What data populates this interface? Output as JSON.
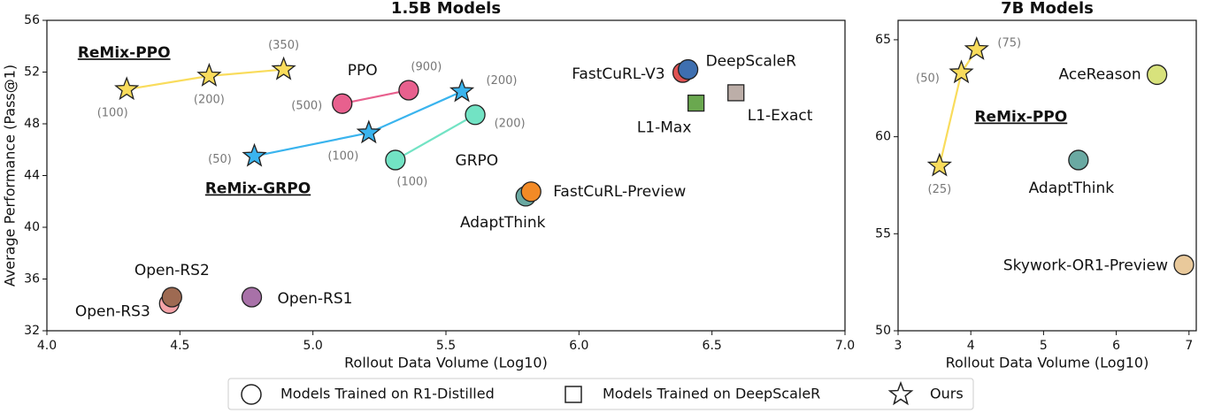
{
  "chart_data": [
    {
      "type": "scatter",
      "title": "1.5B Models",
      "x_label": "Rollout Data Volume (Log10)",
      "y_label": "Average Performance (Pass@1)",
      "xlim": [
        4.0,
        7.0
      ],
      "ylim": [
        32,
        56
      ],
      "xticks": [
        {
          "value": 4,
          "label": "4.0"
        },
        4.5,
        {
          "value": 5,
          "label": "5.0"
        },
        5.5,
        {
          "value": 6,
          "label": "6.0"
        },
        6.5,
        {
          "value": 7,
          "label": "7.0"
        }
      ],
      "yticks": [
        32,
        36,
        40,
        44,
        48,
        52,
        56
      ],
      "series": [
        {
          "name": "ReMix-PPO",
          "marker": "star",
          "color": "#f9dc5c",
          "x": [
            4.3,
            4.61,
            4.89
          ],
          "values": [
            50.66,
            51.7,
            52.2
          ],
          "point_labels": [
            "(100)",
            "(200)",
            "(350)"
          ]
        },
        {
          "name": "PPO",
          "marker": "circle",
          "color": "#e8608e",
          "x": [
            5.11,
            5.36
          ],
          "values": [
            49.56,
            50.6
          ],
          "point_labels": [
            "(500)",
            "(900)"
          ]
        },
        {
          "name": "ReMix-GRPO",
          "marker": "star",
          "color": "#3ab4ee",
          "x": [
            4.78,
            5.21,
            5.56
          ],
          "values": [
            45.5,
            47.3,
            50.5
          ],
          "point_labels": [
            "(50)",
            "(100)",
            "(200)"
          ]
        },
        {
          "name": "GRPO",
          "marker": "circle",
          "color": "#72e3c4",
          "x": [
            5.31,
            5.61
          ],
          "values": [
            45.2,
            48.7
          ],
          "point_labels": [
            "(100)",
            "(200)"
          ]
        },
        {
          "name": "FastCuRL-V3",
          "marker": "circle",
          "color": "#e05252",
          "x": [
            6.39
          ],
          "values": [
            51.96
          ]
        },
        {
          "name": "DeepScaleR",
          "marker": "circle",
          "color": "#3e6fb0",
          "x": [
            6.41
          ],
          "values": [
            52.2
          ]
        },
        {
          "name": "L1-Max",
          "marker": "square",
          "color": "#6aa84f",
          "x": [
            6.44
          ],
          "values": [
            49.6
          ]
        },
        {
          "name": "L1-Exact",
          "marker": "square",
          "color": "#bcaea8",
          "x": [
            6.59
          ],
          "values": [
            50.4
          ]
        },
        {
          "name": "AdaptThink",
          "marker": "circle",
          "color": "#6aa9a2",
          "x": [
            5.8
          ],
          "values": [
            42.4
          ]
        },
        {
          "name": "FastCuRL-Preview",
          "marker": "circle",
          "color": "#f28a26",
          "x": [
            5.82
          ],
          "values": [
            42.75
          ]
        },
        {
          "name": "Open-RS3",
          "marker": "circle",
          "color": "#f5a3a8",
          "x": [
            4.46
          ],
          "values": [
            34.1
          ]
        },
        {
          "name": "Open-RS2",
          "marker": "circle",
          "color": "#9e6a52",
          "x": [
            4.47
          ],
          "values": [
            34.6
          ]
        },
        {
          "name": "Open-RS1",
          "marker": "circle",
          "color": "#a871a8",
          "x": [
            4.77
          ],
          "values": [
            34.6
          ]
        }
      ]
    },
    {
      "type": "scatter",
      "title": "7B Models",
      "x_label": "Rollout Data Volume (Log10)",
      "xlim": [
        3,
        7.1
      ],
      "ylim": [
        50,
        66
      ],
      "xticks": [
        3,
        4,
        5,
        6,
        7
      ],
      "yticks": [
        50,
        55,
        60,
        65
      ],
      "series": [
        {
          "name": "ReMix-PPO",
          "marker": "star",
          "color": "#f9dc5c",
          "x": [
            3.57,
            3.87,
            4.08
          ],
          "values": [
            58.5,
            63.3,
            64.5
          ],
          "point_labels": [
            "(25)",
            "(50)",
            "(75)"
          ]
        },
        {
          "name": "AceReason",
          "marker": "circle",
          "color": "#d8e27c",
          "x": [
            6.56
          ],
          "values": [
            63.2
          ]
        },
        {
          "name": "AdaptThink",
          "marker": "circle",
          "color": "#6aa9a2",
          "x": [
            5.48
          ],
          "values": [
            58.8
          ]
        },
        {
          "name": "Skywork-OR1-Preview",
          "marker": "circle",
          "color": "#e9c99b",
          "x": [
            6.93
          ],
          "values": [
            53.4
          ]
        }
      ]
    }
  ],
  "legend": {
    "items": [
      {
        "marker": "circle",
        "label": "Models Trained on R1-Distilled"
      },
      {
        "marker": "square",
        "label": "Models Trained on DeepScaleR"
      },
      {
        "marker": "star",
        "label": "Ours"
      }
    ]
  }
}
